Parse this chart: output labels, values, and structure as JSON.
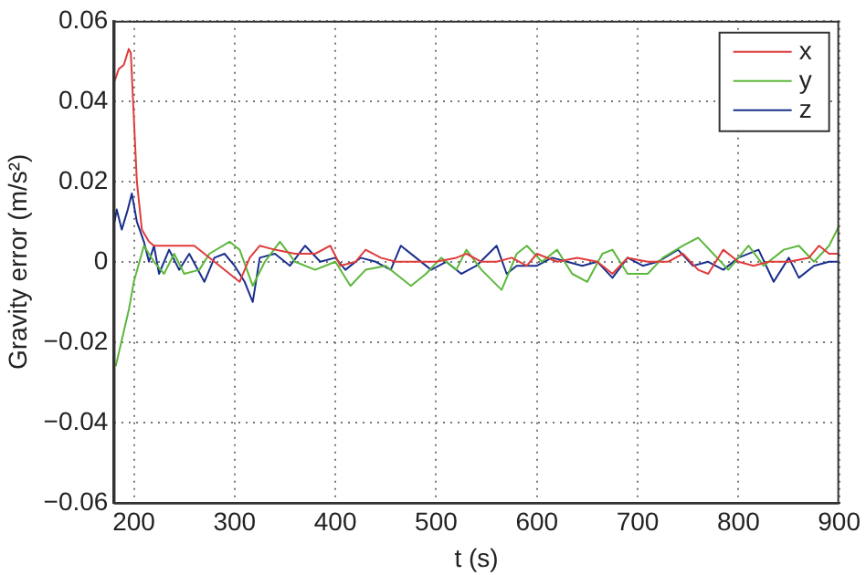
{
  "chart_data": {
    "type": "line",
    "xlabel": "t (s)",
    "ylabel": "Gravity error (m/s²)",
    "xlim": [
      180,
      900
    ],
    "xticks": [
      200,
      300,
      400,
      500,
      600,
      700,
      800,
      900
    ],
    "ylim": [
      -0.06,
      0.06
    ],
    "yticks": [
      -0.06,
      -0.04,
      -0.02,
      0,
      0.02,
      0.04,
      0.06
    ],
    "grid": true,
    "legend": "top right",
    "marker": "none",
    "line_style": "solid",
    "series": [
      {
        "name": "x",
        "color": "#e03c3c",
        "x": [
          181,
          185,
          190,
          195,
          197,
          203,
          208,
          215,
          220,
          240,
          260,
          270,
          280,
          295,
          305,
          315,
          325,
          340,
          360,
          380,
          395,
          405,
          420,
          430,
          445,
          460,
          480,
          500,
          520,
          530,
          545,
          560,
          575,
          590,
          600,
          620,
          640,
          660,
          675,
          690,
          710,
          730,
          745,
          760,
          770,
          785,
          800,
          815,
          830,
          850,
          870,
          880,
          890,
          900
        ],
        "values": [
          0.045,
          0.048,
          0.049,
          0.053,
          0.052,
          0.02,
          0.008,
          0.005,
          0.004,
          0.004,
          0.004,
          0.002,
          0,
          -0.003,
          -0.005,
          0.001,
          0.004,
          0.003,
          0.002,
          0.002,
          0.004,
          -0.001,
          0,
          0.003,
          0.001,
          0,
          0,
          0,
          0.001,
          0.002,
          0,
          0,
          0.001,
          -0.001,
          0.002,
          0,
          0.001,
          0,
          -0.003,
          0.001,
          0,
          0,
          0.002,
          -0.002,
          -0.003,
          0.003,
          0,
          -0.001,
          0,
          0,
          0.001,
          0.004,
          0.002,
          0.002
        ]
      },
      {
        "name": "y",
        "color": "#5cb83c",
        "x": [
          182,
          195,
          200,
          210,
          220,
          230,
          240,
          250,
          265,
          275,
          295,
          305,
          318,
          330,
          345,
          360,
          380,
          400,
          415,
          430,
          450,
          475,
          490,
          505,
          520,
          530,
          545,
          565,
          580,
          590,
          605,
          620,
          635,
          650,
          665,
          675,
          690,
          710,
          725,
          745,
          760,
          775,
          790,
          810,
          825,
          845,
          860,
          875,
          890,
          900
        ],
        "values": [
          -0.026,
          -0.012,
          -0.005,
          0.004,
          0,
          -0.003,
          0.002,
          -0.003,
          -0.002,
          0.002,
          0.005,
          0.003,
          -0.006,
          0,
          0.005,
          0,
          -0.002,
          0,
          -0.006,
          -0.002,
          -0.001,
          -0.006,
          -0.003,
          0.001,
          -0.002,
          0.003,
          -0.002,
          -0.007,
          0.002,
          0.004,
          0,
          0.003,
          -0.003,
          -0.005,
          0.002,
          0.003,
          -0.003,
          -0.003,
          0.001,
          0.004,
          0.006,
          0.002,
          -0.002,
          0.004,
          -0.001,
          0.003,
          0.004,
          0,
          0.004,
          0.009
        ]
      },
      {
        "name": "z",
        "color": "#1a2f8c",
        "x": [
          181,
          183,
          188,
          194,
          198,
          203,
          210,
          215,
          220,
          225,
          235,
          245,
          255,
          270,
          280,
          290,
          300,
          310,
          318,
          325,
          340,
          355,
          370,
          385,
          400,
          410,
          425,
          440,
          455,
          465,
          480,
          495,
          510,
          525,
          540,
          560,
          570,
          580,
          600,
          615,
          630,
          645,
          660,
          675,
          690,
          705,
          720,
          740,
          755,
          770,
          785,
          800,
          820,
          835,
          850,
          860,
          875,
          890,
          900
        ],
        "values": [
          0.01,
          0.013,
          0.008,
          0.013,
          0.017,
          0.01,
          0.005,
          0,
          0.004,
          -0.003,
          0.003,
          -0.002,
          0.002,
          -0.005,
          0.001,
          0.002,
          -0.001,
          -0.005,
          -0.01,
          0.001,
          0.002,
          -0.001,
          0.004,
          0,
          0.001,
          -0.002,
          0.001,
          0,
          -0.002,
          0.004,
          0.001,
          -0.002,
          0,
          -0.003,
          -0.001,
          0.004,
          -0.003,
          -0.001,
          -0.001,
          0.001,
          0,
          -0.001,
          0,
          -0.004,
          0.001,
          -0.001,
          0,
          0.003,
          -0.001,
          0,
          -0.002,
          0.001,
          0.003,
          -0.005,
          0.001,
          -0.004,
          -0.001,
          0,
          0
        ]
      }
    ]
  }
}
